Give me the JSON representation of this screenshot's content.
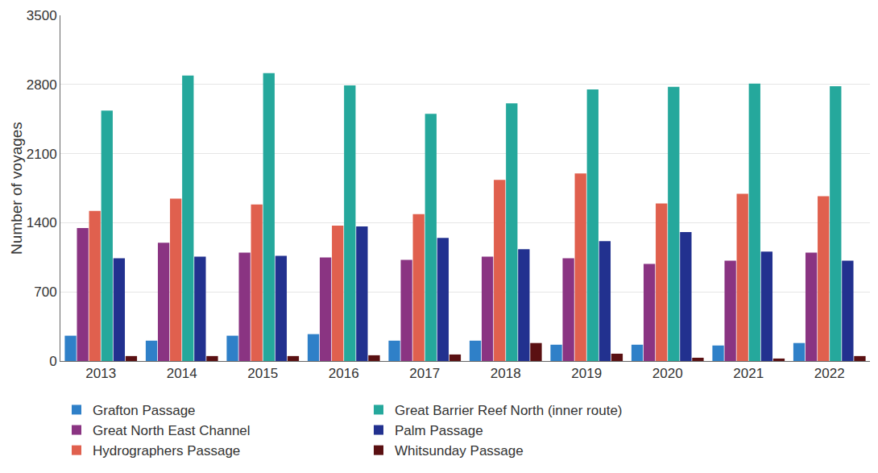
{
  "chart_data": {
    "type": "bar",
    "y_label": "Number of voyages",
    "categories": [
      "2013",
      "2014",
      "2015",
      "2016",
      "2017",
      "2018",
      "2019",
      "2020",
      "2021",
      "2022"
    ],
    "series": [
      {
        "name": "Grafton Passage",
        "color": "#2f80c8",
        "values": [
          256,
          206,
          256,
          272,
          206,
          206,
          165,
          165,
          157,
          182
        ]
      },
      {
        "name": "Great North East Channel",
        "color": "#8a3482",
        "values": [
          1346,
          1197,
          1098,
          1049,
          1024,
          1057,
          1040,
          983,
          1016,
          1098
        ]
      },
      {
        "name": "Hydrographers Passage",
        "color": "#e0604e",
        "values": [
          1519,
          1643,
          1585,
          1371,
          1486,
          1833,
          1899,
          1594,
          1693,
          1668
        ]
      },
      {
        "name": "Great Barrier Reef North (inner route)",
        "color": "#25a89c",
        "values": [
          2535,
          2890,
          2915,
          2791,
          2502,
          2609,
          2750,
          2775,
          2808,
          2783
        ]
      },
      {
        "name": "Palm Passage",
        "color": "#22318f",
        "values": [
          1040,
          1057,
          1065,
          1362,
          1247,
          1131,
          1214,
          1305,
          1107,
          1016
        ]
      },
      {
        "name": "Whitsunday Passage",
        "color": "#5a1012",
        "values": [
          50,
          50,
          50,
          58,
          66,
          182,
          74,
          33,
          25,
          50
        ]
      }
    ],
    "ylim": [
      0,
      3500
    ],
    "yticks": [
      0,
      700,
      1400,
      2100,
      2800,
      3500
    ],
    "grid": true,
    "legend": "bottom"
  }
}
